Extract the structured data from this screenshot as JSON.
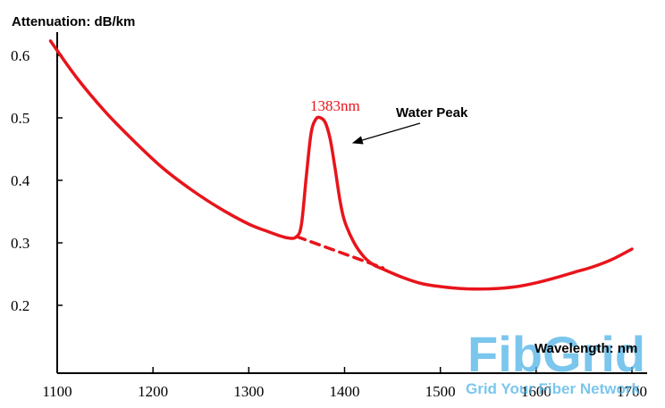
{
  "chart_data": {
    "type": "line",
    "ylabel": "Attenuation: dB/km",
    "xlabel": "Wavelength: nm",
    "xlim": [
      1100,
      1700
    ],
    "ylim": [
      0.1,
      0.65
    ],
    "xticks": [
      1100,
      1200,
      1300,
      1400,
      1500,
      1600,
      1700
    ],
    "xtick_labels": [
      "1100",
      "1200",
      "1300",
      "1400",
      "1500",
      "1600",
      "1700"
    ],
    "yticks": [
      0.2,
      0.3,
      0.4,
      0.5,
      0.6
    ],
    "ytick_labels": [
      "0.2",
      "0.3",
      "0.4",
      "0.5",
      "0.6"
    ],
    "grid": false,
    "line_color": "#e8141b",
    "series": [
      {
        "x": [
          1093,
          1120,
          1150,
          1180,
          1210,
          1240,
          1270,
          1300,
          1320,
          1340,
          1350,
          1355,
          1360,
          1365,
          1370,
          1375,
          1380,
          1385,
          1390,
          1395,
          1400,
          1410,
          1420,
          1430,
          1440,
          1460,
          1480,
          1500,
          1520,
          1540,
          1560,
          1580,
          1600,
          1620,
          1640,
          1660,
          1680,
          1700
        ],
        "values": [
          0.623,
          0.565,
          0.51,
          0.463,
          0.42,
          0.385,
          0.355,
          0.33,
          0.318,
          0.308,
          0.31,
          0.33,
          0.405,
          0.475,
          0.498,
          0.5,
          0.492,
          0.466,
          0.42,
          0.37,
          0.335,
          0.3,
          0.278,
          0.265,
          0.258,
          0.245,
          0.235,
          0.23,
          0.227,
          0.226,
          0.227,
          0.23,
          0.236,
          0.244,
          0.253,
          0.262,
          0.274,
          0.29
        ]
      },
      {
        "style": "dashed",
        "x": [
          1350,
          1440
        ],
        "values": [
          0.31,
          0.26
        ]
      }
    ],
    "annotations": [
      {
        "text": "1383nm",
        "x": 1383,
        "y": 0.5
      },
      {
        "text": "Water Peak",
        "x": 1390,
        "y": 0.47
      }
    ]
  },
  "watermark": {
    "brand": "FibGrid",
    "tagline": "Grid Your Fiber Network"
  }
}
